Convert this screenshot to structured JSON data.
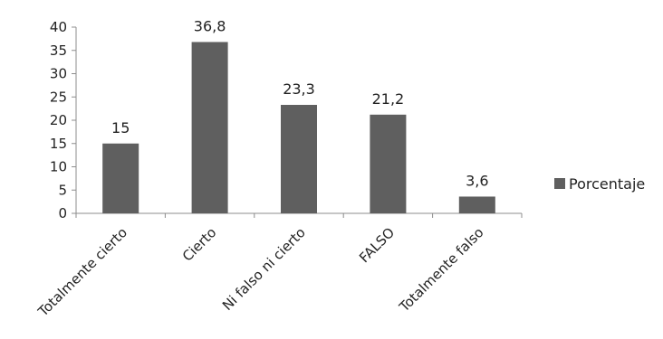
{
  "chart_data": {
    "type": "bar",
    "categories": [
      "Totalmente cierto",
      "Cierto",
      "Ni falso ni cierto",
      "FALSO",
      "Totalmente falso"
    ],
    "series": [
      {
        "name": "Porcentaje",
        "values": [
          15,
          36.8,
          23.3,
          21.2,
          3.6
        ],
        "value_labels": [
          "15",
          "36,8",
          "23,3",
          "21,2",
          "3,6"
        ],
        "color": "#5f5f5f"
      }
    ],
    "yticks": [
      "0",
      "5",
      "10",
      "15",
      "20",
      "25",
      "30",
      "35",
      "40"
    ],
    "ylim": [
      0,
      40
    ],
    "grid": false,
    "legend_position": "right",
    "axis_color": "#8c8c8c"
  }
}
